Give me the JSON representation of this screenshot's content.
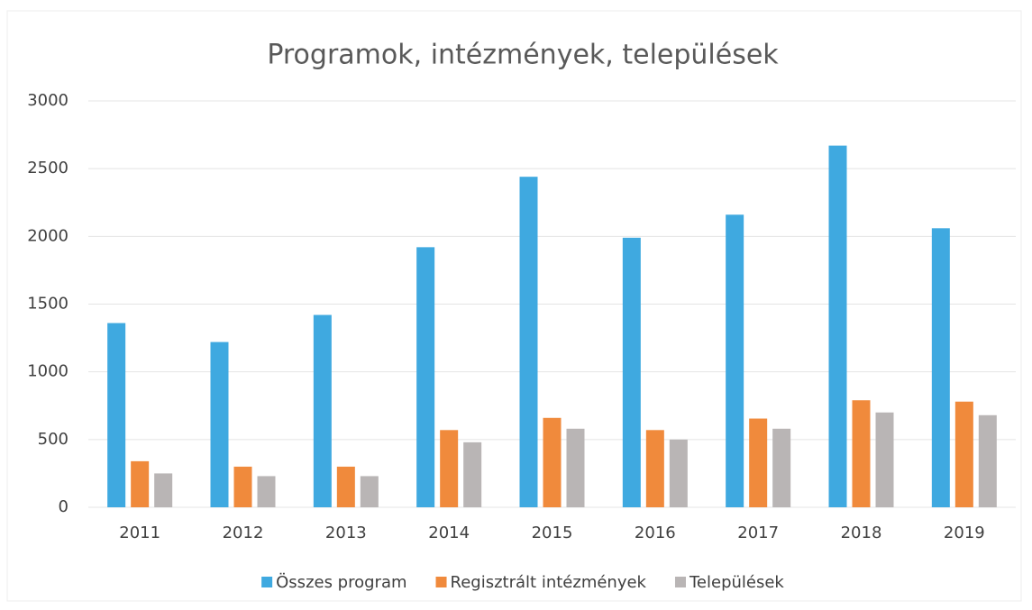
{
  "chart_data": {
    "type": "bar",
    "title": "Programok, intézmények, települések",
    "categories": [
      "2011",
      "2012",
      "2013",
      "2014",
      "2015",
      "2016",
      "2017",
      "2018",
      "2019"
    ],
    "series": [
      {
        "name": "Összes program",
        "color": "#3fa9e0",
        "values": [
          1360,
          1220,
          1420,
          1920,
          2440,
          1990,
          2160,
          2670,
          2060
        ]
      },
      {
        "name": "Regisztrált intézmények",
        "color": "#f08a3c",
        "values": [
          340,
          300,
          300,
          570,
          660,
          570,
          655,
          790,
          780
        ]
      },
      {
        "name": "Települések",
        "color": "#b9b5b5",
        "values": [
          250,
          230,
          230,
          480,
          580,
          500,
          580,
          700,
          680
        ]
      }
    ],
    "ylim": [
      0,
      3000
    ],
    "yticks": [
      0,
      500,
      1000,
      1500,
      2000,
      2500,
      3000
    ],
    "grid": true,
    "legend": "bottom"
  }
}
